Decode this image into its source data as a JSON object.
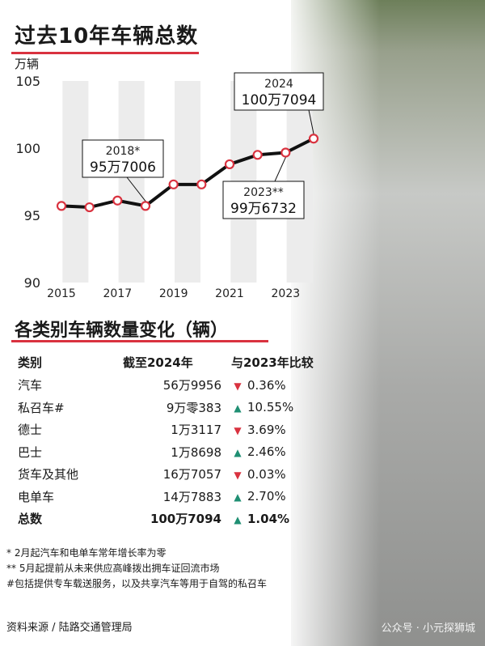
{
  "title": "过去10年车辆总数",
  "unit": "万辆",
  "chart_data": {
    "type": "line",
    "x": [
      2015,
      2016,
      2017,
      2018,
      2019,
      2020,
      2021,
      2022,
      2023,
      2024
    ],
    "y": [
      95.7,
      95.6,
      96.1,
      95.7,
      97.3,
      97.3,
      98.8,
      99.5,
      99.67,
      100.71
    ],
    "yticks": [
      90,
      95,
      100,
      105
    ],
    "xticks": [
      2015,
      2017,
      2019,
      2021,
      2023
    ],
    "ylim": [
      90,
      105
    ],
    "xlim": [
      2015,
      2024
    ],
    "line_color": "#111111",
    "marker_color": "#d9323f",
    "band_color": "#ececec",
    "annotations": [
      {
        "year": "2018*",
        "value": "95万7006"
      },
      {
        "year": "2023**",
        "value": "99万6732"
      },
      {
        "year": "2024",
        "value": "100万7094"
      }
    ]
  },
  "section_title": "各类别车辆数量变化（辆）",
  "table": {
    "headers": [
      "类别",
      "截至2024年",
      "与2023年比较"
    ],
    "rows": [
      {
        "category": "汽车",
        "count": "56万9956",
        "direction": "down",
        "arrow": "▼",
        "change": "0.36%"
      },
      {
        "category": "私召车#",
        "count": "9万零383",
        "direction": "up",
        "arrow": "▲",
        "change": "10.55%"
      },
      {
        "category": "德士",
        "count": "1万3117",
        "direction": "down",
        "arrow": "▼",
        "change": "3.69%"
      },
      {
        "category": "巴士",
        "count": "1万8698",
        "direction": "up",
        "arrow": "▲",
        "change": "2.46%"
      },
      {
        "category": "货车及其他",
        "count": "16万7057",
        "direction": "down",
        "arrow": "▼",
        "change": "0.03%"
      },
      {
        "category": "电单车",
        "count": "14万7883",
        "direction": "up",
        "arrow": "▲",
        "change": "2.70%"
      },
      {
        "category": "总数",
        "count": "100万7094",
        "direction": "up",
        "arrow": "▲",
        "change": "1.04%"
      }
    ],
    "up_color": "#1f8f73",
    "down_color": "#d9323f"
  },
  "notes": [
    "* 2月起汽车和电单车常年增长率为零",
    "** 5月起提前从未来供应高峰拨出拥车证回流市场",
    "#包括提供专车载送服务，以及共享汽车等用于自驾的私召车"
  ],
  "source": "资料来源 / 陆路交通管理局",
  "watermark": "公众号 · 小元探狮城"
}
